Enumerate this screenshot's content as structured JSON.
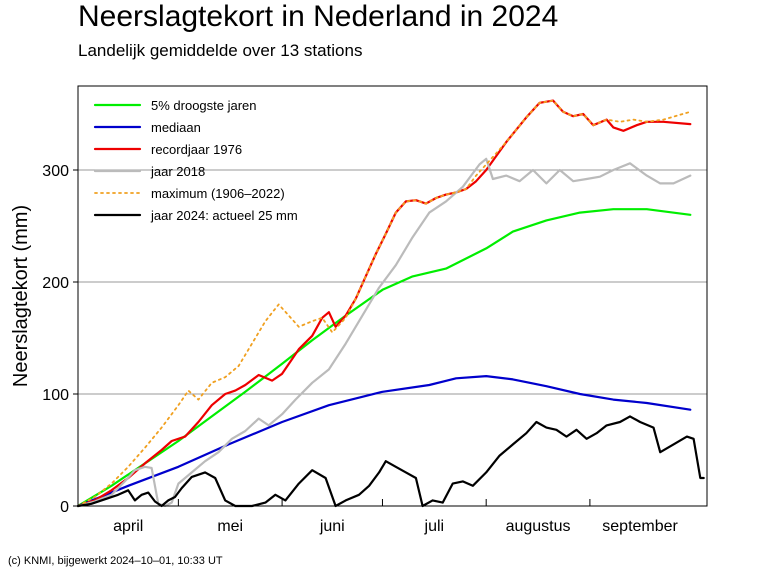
{
  "header": {
    "title": "Neerslagtekort in Nederland in 2024",
    "subtitle": "Landelijk gemiddelde over 13 stations"
  },
  "footer": {
    "credit": "(c) KNMI, bijgewerkt 2024–10–01, 10:33 UT"
  },
  "chart_data": {
    "type": "line",
    "ylabel": "Neerslagtekort (mm)",
    "xlabel": "",
    "x_unit": "day of year (April 1 = 0)",
    "xlim": [
      0,
      183
    ],
    "ylim": [
      0,
      375
    ],
    "yticks": [
      0,
      100,
      200,
      300
    ],
    "grid": "horizontal",
    "legend_position": "top-left",
    "month_ticks": [
      {
        "label": "april",
        "start": 0,
        "end": 30
      },
      {
        "label": "mei",
        "start": 30,
        "end": 61
      },
      {
        "label": "juni",
        "start": 61,
        "end": 91
      },
      {
        "label": "juli",
        "start": 91,
        "end": 122
      },
      {
        "label": "augustus",
        "start": 122,
        "end": 153
      },
      {
        "label": "september",
        "start": 153,
        "end": 183
      }
    ],
    "series": [
      {
        "name": "5% droogste jaren",
        "color": "#00ee00",
        "dash": "solid",
        "points": [
          [
            0,
            0
          ],
          [
            10,
            18
          ],
          [
            20,
            38
          ],
          [
            30,
            58
          ],
          [
            40,
            80
          ],
          [
            50,
            102
          ],
          [
            61,
            127
          ],
          [
            70,
            148
          ],
          [
            80,
            170
          ],
          [
            91,
            193
          ],
          [
            100,
            205
          ],
          [
            110,
            212
          ],
          [
            122,
            230
          ],
          [
            130,
            245
          ],
          [
            140,
            255
          ],
          [
            150,
            262
          ],
          [
            160,
            265
          ],
          [
            170,
            265
          ],
          [
            183,
            260
          ]
        ]
      },
      {
        "name": "mediaan",
        "color": "#0000cc",
        "dash": "solid",
        "points": [
          [
            0,
            0
          ],
          [
            15,
            18
          ],
          [
            30,
            35
          ],
          [
            45,
            55
          ],
          [
            61,
            75
          ],
          [
            75,
            90
          ],
          [
            91,
            102
          ],
          [
            105,
            108
          ],
          [
            113,
            114
          ],
          [
            122,
            116
          ],
          [
            130,
            113
          ],
          [
            140,
            107
          ],
          [
            150,
            100
          ],
          [
            160,
            95
          ],
          [
            170,
            92
          ],
          [
            183,
            86
          ]
        ]
      },
      {
        "name": "recordjaar 1976",
        "color": "#ee0000",
        "dash": "solid",
        "points": [
          [
            0,
            0
          ],
          [
            5,
            5
          ],
          [
            10,
            14
          ],
          [
            15,
            25
          ],
          [
            20,
            38
          ],
          [
            25,
            50
          ],
          [
            28,
            58
          ],
          [
            32,
            62
          ],
          [
            36,
            75
          ],
          [
            40,
            90
          ],
          [
            44,
            100
          ],
          [
            47,
            103
          ],
          [
            50,
            108
          ],
          [
            54,
            117
          ],
          [
            58,
            112
          ],
          [
            61,
            118
          ],
          [
            66,
            140
          ],
          [
            70,
            152
          ],
          [
            73,
            168
          ],
          [
            75,
            173
          ],
          [
            77,
            160
          ],
          [
            80,
            170
          ],
          [
            83,
            185
          ],
          [
            86,
            205
          ],
          [
            89,
            225
          ],
          [
            92,
            243
          ],
          [
            95,
            262
          ],
          [
            98,
            272
          ],
          [
            101,
            273
          ],
          [
            104,
            270
          ],
          [
            107,
            275
          ],
          [
            110,
            278
          ],
          [
            113,
            280
          ],
          [
            116,
            283
          ],
          [
            119,
            290
          ],
          [
            122,
            300
          ],
          [
            128,
            325
          ],
          [
            134,
            347
          ],
          [
            138,
            360
          ],
          [
            142,
            362
          ],
          [
            145,
            352
          ],
          [
            148,
            348
          ],
          [
            151,
            350
          ],
          [
            154,
            340
          ],
          [
            158,
            345
          ],
          [
            160,
            338
          ],
          [
            163,
            335
          ],
          [
            167,
            340
          ],
          [
            170,
            343
          ],
          [
            175,
            343
          ],
          [
            183,
            341
          ]
        ]
      },
      {
        "name": "jaar 2018",
        "color": "#bbbbbb",
        "dash": "solid",
        "points": [
          [
            0,
            0
          ],
          [
            5,
            4
          ],
          [
            10,
            10
          ],
          [
            14,
            22
          ],
          [
            17,
            32
          ],
          [
            20,
            35
          ],
          [
            22,
            34
          ],
          [
            24,
            2
          ],
          [
            26,
            0
          ],
          [
            28,
            3
          ],
          [
            30,
            20
          ],
          [
            34,
            30
          ],
          [
            38,
            40
          ],
          [
            42,
            48
          ],
          [
            46,
            60
          ],
          [
            50,
            67
          ],
          [
            54,
            78
          ],
          [
            57,
            72
          ],
          [
            61,
            82
          ],
          [
            65,
            95
          ],
          [
            70,
            110
          ],
          [
            75,
            122
          ],
          [
            80,
            145
          ],
          [
            85,
            170
          ],
          [
            90,
            195
          ],
          [
            95,
            215
          ],
          [
            100,
            240
          ],
          [
            105,
            262
          ],
          [
            110,
            272
          ],
          [
            115,
            285
          ],
          [
            120,
            305
          ],
          [
            122,
            310
          ],
          [
            124,
            292
          ],
          [
            128,
            295
          ],
          [
            132,
            290
          ],
          [
            136,
            300
          ],
          [
            140,
            288
          ],
          [
            144,
            300
          ],
          [
            148,
            290
          ],
          [
            152,
            292
          ],
          [
            156,
            294
          ],
          [
            160,
            300
          ],
          [
            165,
            306
          ],
          [
            170,
            295
          ],
          [
            174,
            288
          ],
          [
            178,
            288
          ],
          [
            183,
            295
          ]
        ]
      },
      {
        "name": "maximum (1906–2022)",
        "color": "#f0a020",
        "dash": "dotted",
        "points": [
          [
            0,
            0
          ],
          [
            5,
            8
          ],
          [
            10,
            20
          ],
          [
            15,
            35
          ],
          [
            20,
            52
          ],
          [
            25,
            70
          ],
          [
            30,
            90
          ],
          [
            33,
            103
          ],
          [
            36,
            95
          ],
          [
            40,
            110
          ],
          [
            44,
            115
          ],
          [
            48,
            125
          ],
          [
            52,
            145
          ],
          [
            56,
            165
          ],
          [
            60,
            180
          ],
          [
            63,
            170
          ],
          [
            66,
            160
          ],
          [
            70,
            165
          ],
          [
            73,
            168
          ],
          [
            76,
            155
          ],
          [
            80,
            168
          ],
          [
            83,
            185
          ],
          [
            86,
            205
          ],
          [
            89,
            225
          ],
          [
            92,
            243
          ],
          [
            95,
            262
          ],
          [
            98,
            272
          ],
          [
            101,
            273
          ],
          [
            104,
            270
          ],
          [
            107,
            275
          ],
          [
            110,
            278
          ],
          [
            113,
            280
          ],
          [
            116,
            283
          ],
          [
            119,
            295
          ],
          [
            122,
            305
          ],
          [
            128,
            325
          ],
          [
            134,
            347
          ],
          [
            138,
            360
          ],
          [
            142,
            362
          ],
          [
            145,
            352
          ],
          [
            148,
            348
          ],
          [
            151,
            350
          ],
          [
            154,
            340
          ],
          [
            158,
            345
          ],
          [
            162,
            343
          ],
          [
            166,
            345
          ],
          [
            170,
            343
          ],
          [
            175,
            345
          ],
          [
            183,
            352
          ]
        ]
      },
      {
        "name": "jaar 2024: actueel 25 mm",
        "color": "#000000",
        "dash": "solid",
        "points": [
          [
            0,
            0
          ],
          [
            4,
            2
          ],
          [
            8,
            6
          ],
          [
            12,
            10
          ],
          [
            15,
            14
          ],
          [
            17,
            5
          ],
          [
            19,
            10
          ],
          [
            21,
            12
          ],
          [
            23,
            4
          ],
          [
            25,
            0
          ],
          [
            27,
            5
          ],
          [
            29,
            8
          ],
          [
            31,
            16
          ],
          [
            34,
            26
          ],
          [
            38,
            30
          ],
          [
            41,
            25
          ],
          [
            44,
            5
          ],
          [
            47,
            0
          ],
          [
            52,
            0
          ],
          [
            56,
            3
          ],
          [
            59,
            10
          ],
          [
            62,
            5
          ],
          [
            66,
            20
          ],
          [
            70,
            32
          ],
          [
            74,
            25
          ],
          [
            77,
            0
          ],
          [
            80,
            5
          ],
          [
            84,
            10
          ],
          [
            87,
            18
          ],
          [
            90,
            30
          ],
          [
            92,
            40
          ],
          [
            95,
            35
          ],
          [
            98,
            30
          ],
          [
            101,
            25
          ],
          [
            103,
            0
          ],
          [
            106,
            5
          ],
          [
            109,
            3
          ],
          [
            112,
            20
          ],
          [
            115,
            22
          ],
          [
            118,
            18
          ],
          [
            122,
            30
          ],
          [
            126,
            45
          ],
          [
            130,
            55
          ],
          [
            134,
            65
          ],
          [
            137,
            75
          ],
          [
            140,
            70
          ],
          [
            143,
            68
          ],
          [
            146,
            62
          ],
          [
            149,
            68
          ],
          [
            152,
            60
          ],
          [
            155,
            65
          ],
          [
            158,
            72
          ],
          [
            162,
            75
          ],
          [
            165,
            80
          ],
          [
            168,
            75
          ],
          [
            172,
            70
          ],
          [
            174,
            48
          ],
          [
            178,
            55
          ],
          [
            182,
            62
          ],
          [
            184,
            60
          ],
          [
            186,
            25
          ],
          [
            187,
            25
          ]
        ]
      }
    ]
  }
}
